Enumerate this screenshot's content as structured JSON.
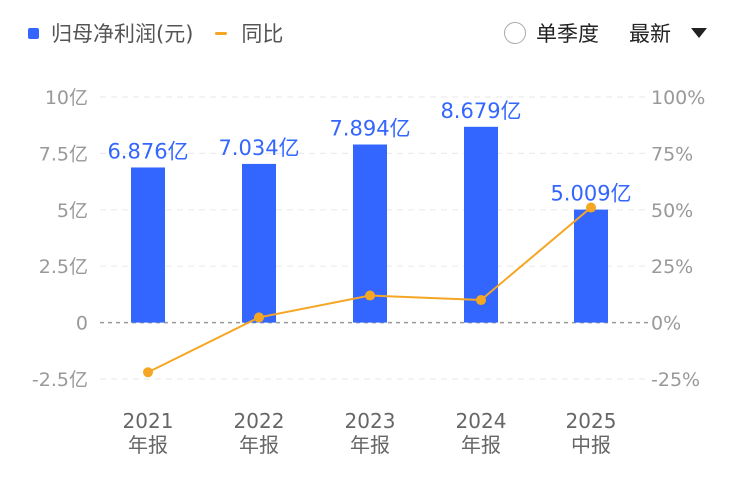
{
  "legend": {
    "bar_label": "归母净利润(元)",
    "line_label": "同比"
  },
  "controls": {
    "single_season_label": "单季度",
    "dropdown_value": "最新"
  },
  "colors": {
    "bar": "#3366ff",
    "line": "#f5a623",
    "label": "#3366ff"
  },
  "chart_data": {
    "type": "bar",
    "categories": [
      "2021",
      "2022",
      "2023",
      "2024",
      "2025"
    ],
    "category_sublabels": [
      "年报",
      "年报",
      "年报",
      "年报",
      "中报"
    ],
    "series": [
      {
        "name": "归母净利润(元)",
        "type": "bar",
        "axis": "left",
        "values": [
          6.876,
          7.034,
          7.894,
          8.679,
          5.009
        ],
        "labels": [
          "6.876亿",
          "7.034亿",
          "7.894亿",
          "8.679亿",
          "5.009亿"
        ]
      },
      {
        "name": "同比",
        "type": "line",
        "axis": "right",
        "values": [
          -22,
          2.3,
          12,
          10,
          51
        ]
      }
    ],
    "y_left": {
      "range": [
        -2.5,
        10
      ],
      "ticks": [
        10,
        7.5,
        5,
        2.5,
        0,
        -2.5
      ],
      "tick_labels": [
        "10亿",
        "7.5亿",
        "5亿",
        "2.5亿",
        "0",
        "-2.5亿"
      ]
    },
    "y_right": {
      "range": [
        -25,
        100
      ],
      "ticks": [
        100,
        75,
        50,
        25,
        0,
        -25
      ],
      "tick_labels": [
        "100%",
        "75%",
        "50%",
        "25%",
        "0%",
        "-25%"
      ]
    },
    "grid": true,
    "legend_position": "top-left"
  }
}
